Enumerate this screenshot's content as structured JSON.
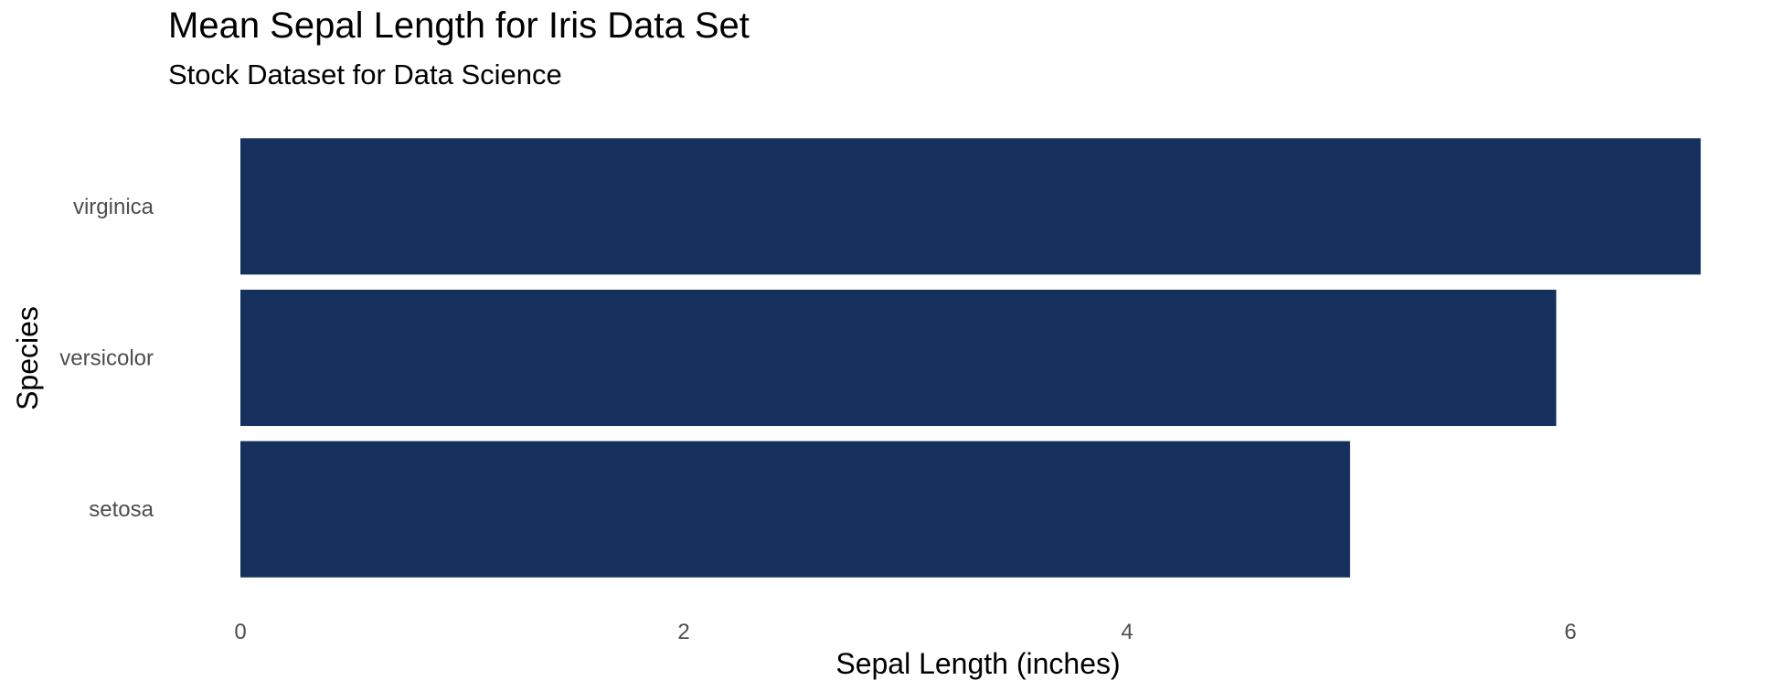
{
  "chart_data": {
    "type": "bar",
    "orientation": "horizontal",
    "title": "Mean Sepal Length for Iris Data Set",
    "subtitle": "Stock Dataset for Data Science",
    "xlabel": "Sepal Length (inches)",
    "ylabel": "Species",
    "categories": [
      "setosa",
      "versicolor",
      "virginica"
    ],
    "values": [
      5.006,
      5.936,
      6.588
    ],
    "xlim": [
      0,
      6.9
    ],
    "xticks": [
      0,
      2,
      4,
      6
    ],
    "grid": false,
    "legend": "none",
    "bar_color": "#16305e"
  }
}
